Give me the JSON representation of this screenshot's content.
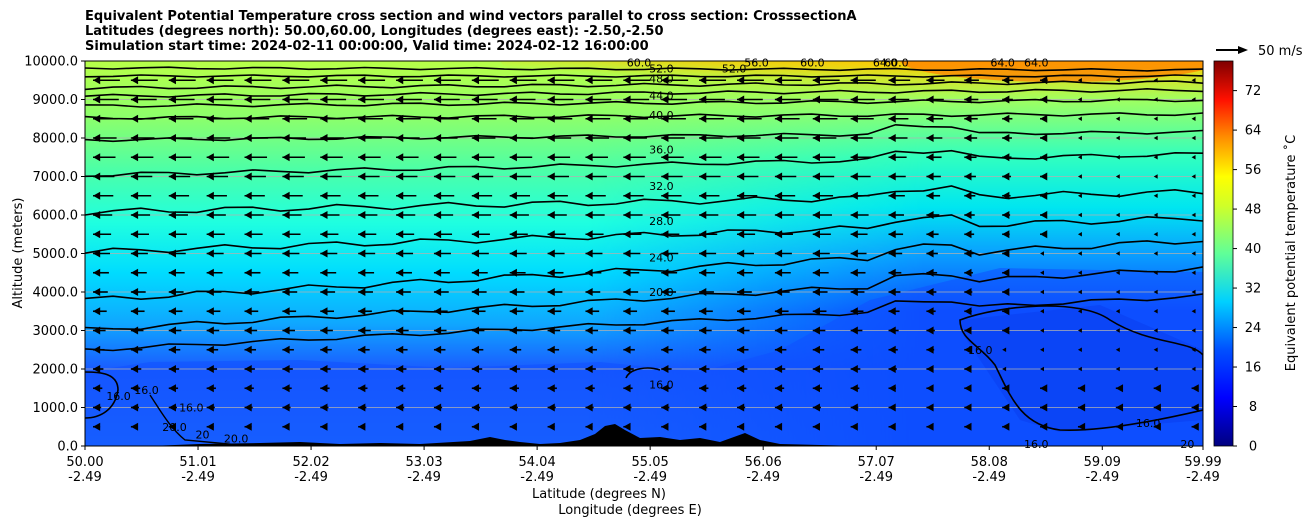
{
  "chart_data": {
    "type": "heatmap",
    "title_lines": [
      "Equivalent Potential Temperature cross section and wind vectors parallel to cross section: CrosssectionA",
      "Latitudes (degrees north): 50.00,60.00, Longitudes (degrees east): -2.50,-2.50",
      "Simulation start time: 2024-02-11 00:00:00, Valid time: 2024-02-12 16:00:00"
    ],
    "ylabel": "Altitude (meters)",
    "xlabel_lines": [
      "Latitude (degrees N)",
      "Longitude (degrees E)"
    ],
    "x_ticks": [
      {
        "lat": "50.00",
        "lon": "-2.49"
      },
      {
        "lat": "51.01",
        "lon": "-2.49"
      },
      {
        "lat": "52.02",
        "lon": "-2.49"
      },
      {
        "lat": "53.03",
        "lon": "-2.49"
      },
      {
        "lat": "54.04",
        "lon": "-2.49"
      },
      {
        "lat": "55.05",
        "lon": "-2.49"
      },
      {
        "lat": "56.06",
        "lon": "-2.49"
      },
      {
        "lat": "57.07",
        "lon": "-2.49"
      },
      {
        "lat": "58.08",
        "lon": "-2.49"
      },
      {
        "lat": "59.09",
        "lon": "-2.49"
      },
      {
        "lat": "59.99",
        "lon": "-2.49"
      }
    ],
    "y_ticks": [
      "0.0",
      "1000.0",
      "2000.0",
      "3000.0",
      "4000.0",
      "5000.0",
      "6000.0",
      "7000.0",
      "8000.0",
      "9000.0",
      "10000.0"
    ],
    "ylim": [
      0,
      10000
    ],
    "grid": "horizontal",
    "colorbar": {
      "label": "Equivalent potential temperature ˚C",
      "range": [
        0,
        78
      ],
      "ticks": [
        "0",
        "8",
        "16",
        "24",
        "32",
        "40",
        "48",
        "56",
        "64",
        "72"
      ]
    },
    "quiver_key": "50 m/s",
    "contour_labels": [
      {
        "label": "16.0",
        "x": 55.15,
        "y": 1600
      },
      {
        "label": "16.0",
        "x": 58.0,
        "y": 2500
      },
      {
        "label": "16.0",
        "x": 59.5,
        "y": 600
      },
      {
        "label": "16.0",
        "x": 58.5,
        "y": 50
      },
      {
        "label": "16.0",
        "x": 50.55,
        "y": 1450
      },
      {
        "label": "16.0",
        "x": 50.3,
        "y": 1300
      },
      {
        "label": "16.0",
        "x": 50.95,
        "y": 1000
      },
      {
        "label": "20.0",
        "x": 50.8,
        "y": 500
      },
      {
        "label": "20",
        "x": 51.05,
        "y": 300
      },
      {
        "label": "20.0",
        "x": 51.35,
        "y": 200
      },
      {
        "label": "20",
        "x": 59.85,
        "y": 50
      },
      {
        "label": "20.0",
        "x": 55.15,
        "y": 4000
      },
      {
        "label": "24.0",
        "x": 55.15,
        "y": 4900
      },
      {
        "label": "28.0",
        "x": 55.15,
        "y": 5850
      },
      {
        "label": "32.0",
        "x": 55.15,
        "y": 6750
      },
      {
        "label": "36.0",
        "x": 55.15,
        "y": 7700
      },
      {
        "label": "40.0",
        "x": 55.15,
        "y": 8600
      },
      {
        "label": "44.0",
        "x": 55.15,
        "y": 9100
      },
      {
        "label": "48.0",
        "x": 55.15,
        "y": 9550
      },
      {
        "label": "52.0",
        "x": 55.15,
        "y": 9800
      },
      {
        "label": "52.0",
        "x": 55.8,
        "y": 9800
      },
      {
        "label": "56.0",
        "x": 56.0,
        "y": 9960
      },
      {
        "label": "60.0",
        "x": 56.5,
        "y": 9960
      },
      {
        "label": "64.0",
        "x": 57.15,
        "y": 9960
      },
      {
        "label": "60.0",
        "x": 57.25,
        "y": 9960
      },
      {
        "label": "64.0",
        "x": 58.2,
        "y": 9960
      },
      {
        "label": "64.0",
        "x": 58.5,
        "y": 9960
      },
      {
        "label": "60.0",
        "x": 54.95,
        "y": 9960
      }
    ]
  },
  "colors": {
    "colormap": [
      "#00007f",
      "#0000ff",
      "#007fff",
      "#00ffff",
      "#7fff7f",
      "#ffff00",
      "#ff7f00",
      "#ff0000",
      "#7f0000"
    ],
    "terrain": "#000000",
    "contour": "#000000",
    "arrow": "#000000"
  }
}
